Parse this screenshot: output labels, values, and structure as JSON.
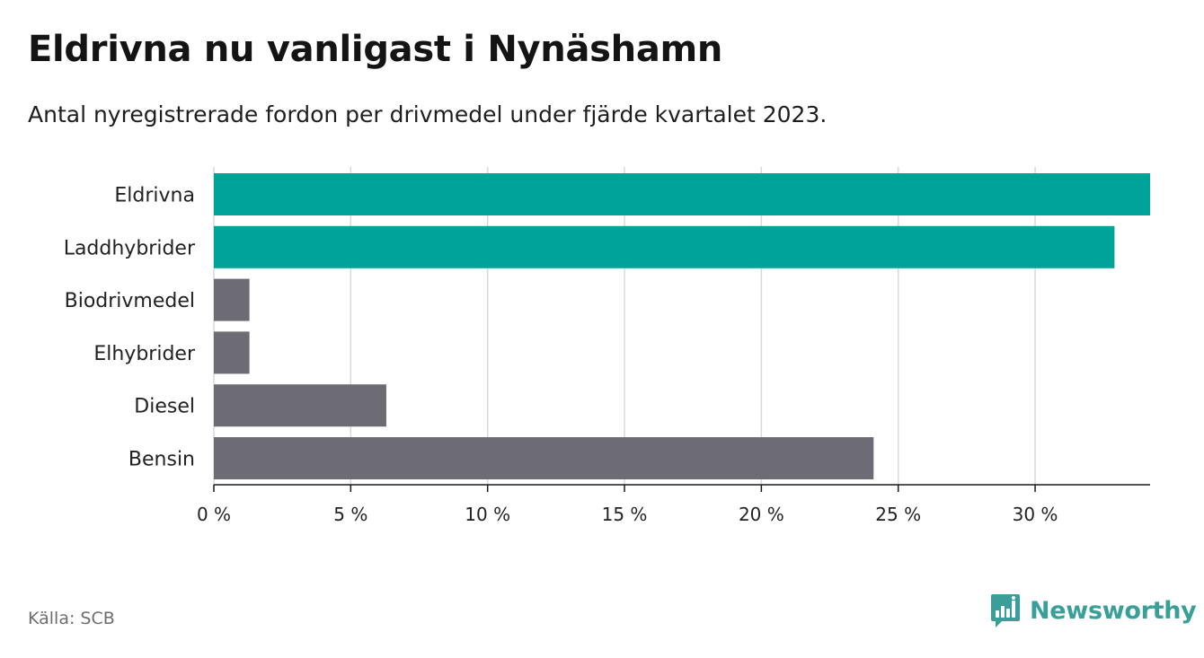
{
  "title": "Eldrivna nu vanligast i Nynäshamn",
  "subtitle": "Antal nyregistrerade fordon per drivmedel under fjärde kvartalet 2023.",
  "source": "Källa: SCB",
  "brand": {
    "name": "Newsworthy",
    "color": "#3a9e99"
  },
  "colors": {
    "highlight": "#00a398",
    "other": "#6d6b74",
    "grid": "#d9d9d9",
    "axis": "#1a1a1a"
  },
  "chart_data": {
    "type": "bar",
    "orientation": "horizontal",
    "title": "Eldrivna nu vanligast i Nynäshamn",
    "subtitle": "Antal nyregistrerade fordon per drivmedel under fjärde kvartalet 2023.",
    "categories": [
      "Eldrivna",
      "Laddhybrider",
      "Biodrivmedel",
      "Elhybrider",
      "Diesel",
      "Bensin"
    ],
    "values": [
      34.2,
      32.9,
      1.3,
      1.3,
      6.3,
      24.1
    ],
    "highlighted": [
      true,
      true,
      false,
      false,
      false,
      false
    ],
    "unit": "%",
    "xlim": [
      0,
      34.2
    ],
    "xticks": [
      0,
      5,
      10,
      15,
      20,
      25,
      30
    ],
    "xtick_labels": [
      "0 %",
      "5 %",
      "10 %",
      "15 %",
      "20 %",
      "25 %",
      "30 %"
    ],
    "xlabel": "",
    "ylabel": "",
    "grid": true
  }
}
